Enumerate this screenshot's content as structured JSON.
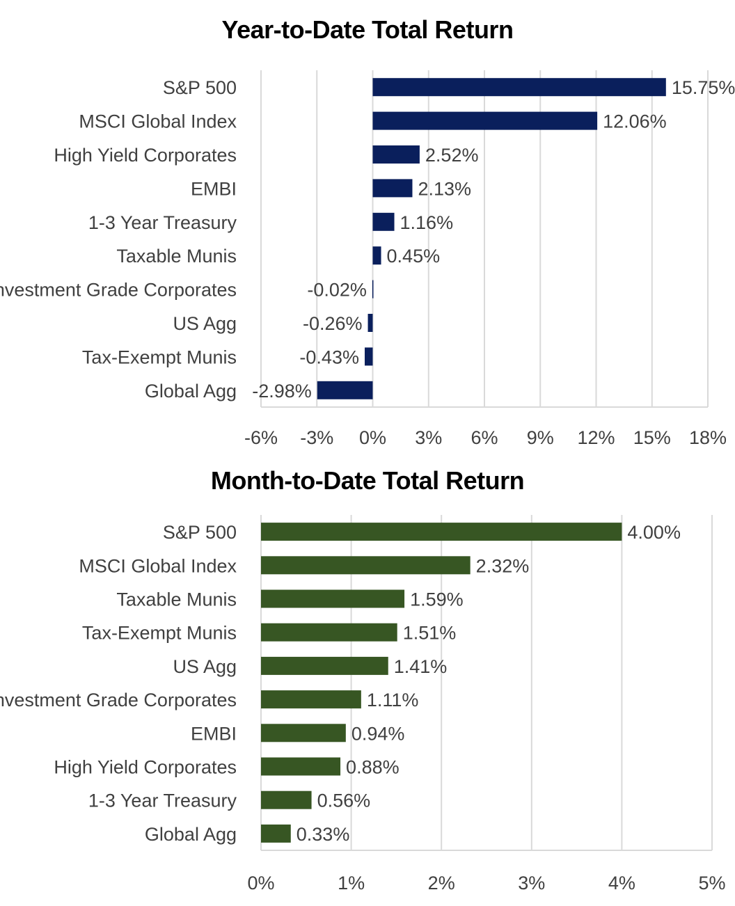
{
  "chart_data": [
    {
      "type": "bar",
      "orientation": "horizontal",
      "title": "Year-to-Date Total Return",
      "categories": [
        "S&P 500",
        "MSCI Global Index",
        "High Yield Corporates",
        "EMBI",
        "1-3 Year Treasury",
        "Taxable Munis",
        "Investment Grade Corporates",
        "US Agg",
        "Tax-Exempt Munis",
        "Global Agg"
      ],
      "values": [
        15.75,
        12.06,
        2.52,
        2.13,
        1.16,
        0.45,
        -0.02,
        -0.26,
        -0.43,
        -2.98
      ],
      "value_labels": [
        "15.75%",
        "12.06%",
        "2.52%",
        "2.13%",
        "1.16%",
        "0.45%",
        "-0.02%",
        "-0.26%",
        "-0.43%",
        "-2.98%"
      ],
      "xlim": [
        -6,
        18
      ],
      "xticks": [
        -6,
        -3,
        0,
        3,
        6,
        9,
        12,
        15,
        18
      ],
      "xtick_labels": [
        "-6%",
        "-3%",
        "0%",
        "3%",
        "6%",
        "9%",
        "12%",
        "15%",
        "18%"
      ],
      "bar_color": "#0a1f5c",
      "grid": true,
      "legend": "none"
    },
    {
      "type": "bar",
      "orientation": "horizontal",
      "title": "Month-to-Date Total Return",
      "categories": [
        "S&P 500",
        "MSCI Global Index",
        "Taxable Munis",
        "Tax-Exempt Munis",
        "US Agg",
        "Investment Grade Corporates",
        "EMBI",
        "High Yield Corporates",
        "1-3 Year Treasury",
        "Global Agg"
      ],
      "values": [
        4.0,
        2.32,
        1.59,
        1.51,
        1.41,
        1.11,
        0.94,
        0.88,
        0.56,
        0.33
      ],
      "value_labels": [
        "4.00%",
        "2.32%",
        "1.59%",
        "1.51%",
        "1.41%",
        "1.11%",
        "0.94%",
        "0.88%",
        "0.56%",
        "0.33%"
      ],
      "xlim": [
        0,
        5
      ],
      "xticks": [
        0,
        1,
        2,
        3,
        4,
        5
      ],
      "xtick_labels": [
        "0%",
        "1%",
        "2%",
        "3%",
        "4%",
        "5%"
      ],
      "bar_color": "#375623",
      "grid": true,
      "legend": "none"
    }
  ],
  "colors": {
    "text": "#404040",
    "grid": "#d9d9d9",
    "title": "#000000"
  }
}
